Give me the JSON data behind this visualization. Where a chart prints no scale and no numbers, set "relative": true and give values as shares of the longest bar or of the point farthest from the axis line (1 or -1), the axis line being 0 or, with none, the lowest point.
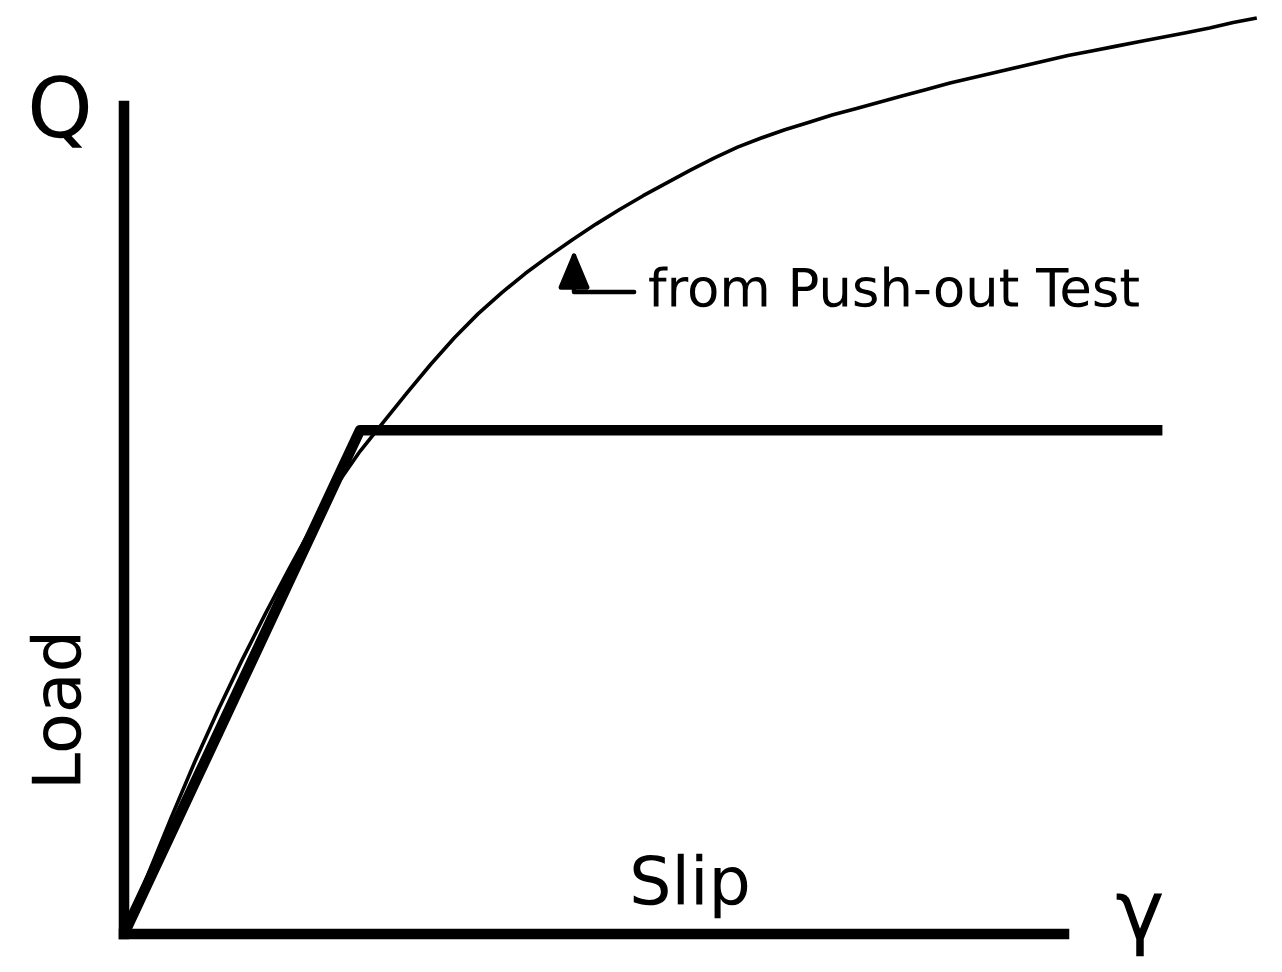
{
  "chart_data": {
    "type": "line",
    "relative": true,
    "xlabel": "Slip",
    "ylabel": "Load",
    "annotations": [
      "Q",
      "γ",
      "from Push-out Test"
    ],
    "categories": [
      null,
      null,
      null,
      null,
      null,
      null,
      null,
      null,
      null,
      null,
      null,
      null,
      null,
      null,
      null,
      null,
      null,
      null,
      null,
      null,
      null,
      null,
      null,
      null,
      null,
      null,
      null,
      null,
      null,
      null,
      null,
      null,
      null,
      null,
      null,
      null,
      null,
      null,
      null,
      null,
      null,
      null,
      null,
      null,
      null,
      null,
      null,
      null,
      null
    ],
    "series": [
      {
        "color": "#000000",
        "values": [
          0,
          0.055,
          0.11,
          0.165,
          0.22,
          0.275,
          0.33,
          0.385,
          0.44,
          0.495,
          0.55,
          0.55,
          0.55,
          0.55,
          0.55,
          0.55,
          0.55,
          0.55,
          0.55,
          0.55,
          0.55,
          0.55,
          0.55,
          0.55,
          0.55,
          0.55,
          0.55,
          0.55,
          0.55,
          0.55,
          0.55,
          0.55,
          0.55,
          0.55,
          0.55,
          0.55,
          0.55,
          0.55,
          0.55,
          0.55,
          0.55,
          0.55,
          0.55,
          0.55,
          0.55,
          null,
          null,
          null,
          null
        ]
      },
      {
        "color": "#000000",
        "values": [
          0,
          0.064,
          0.127,
          0.188,
          0.245,
          0.299,
          0.35,
          0.399,
          0.446,
          0.49,
          0.527,
          0.559,
          0.591,
          0.622,
          0.651,
          0.677,
          0.7,
          0.721,
          0.74,
          0.758,
          0.775,
          0.791,
          0.806,
          0.82,
          0.834,
          0.847,
          0.859,
          0.869,
          0.878,
          0.886,
          0.894,
          0.901,
          0.908,
          0.915,
          0.922,
          0.929,
          0.935,
          0.941,
          0.947,
          0.953,
          0.959,
          0.964,
          0.969,
          0.974,
          0.979,
          0.984,
          0.989,
          0.995,
          1
        ]
      }
    ]
  }
}
